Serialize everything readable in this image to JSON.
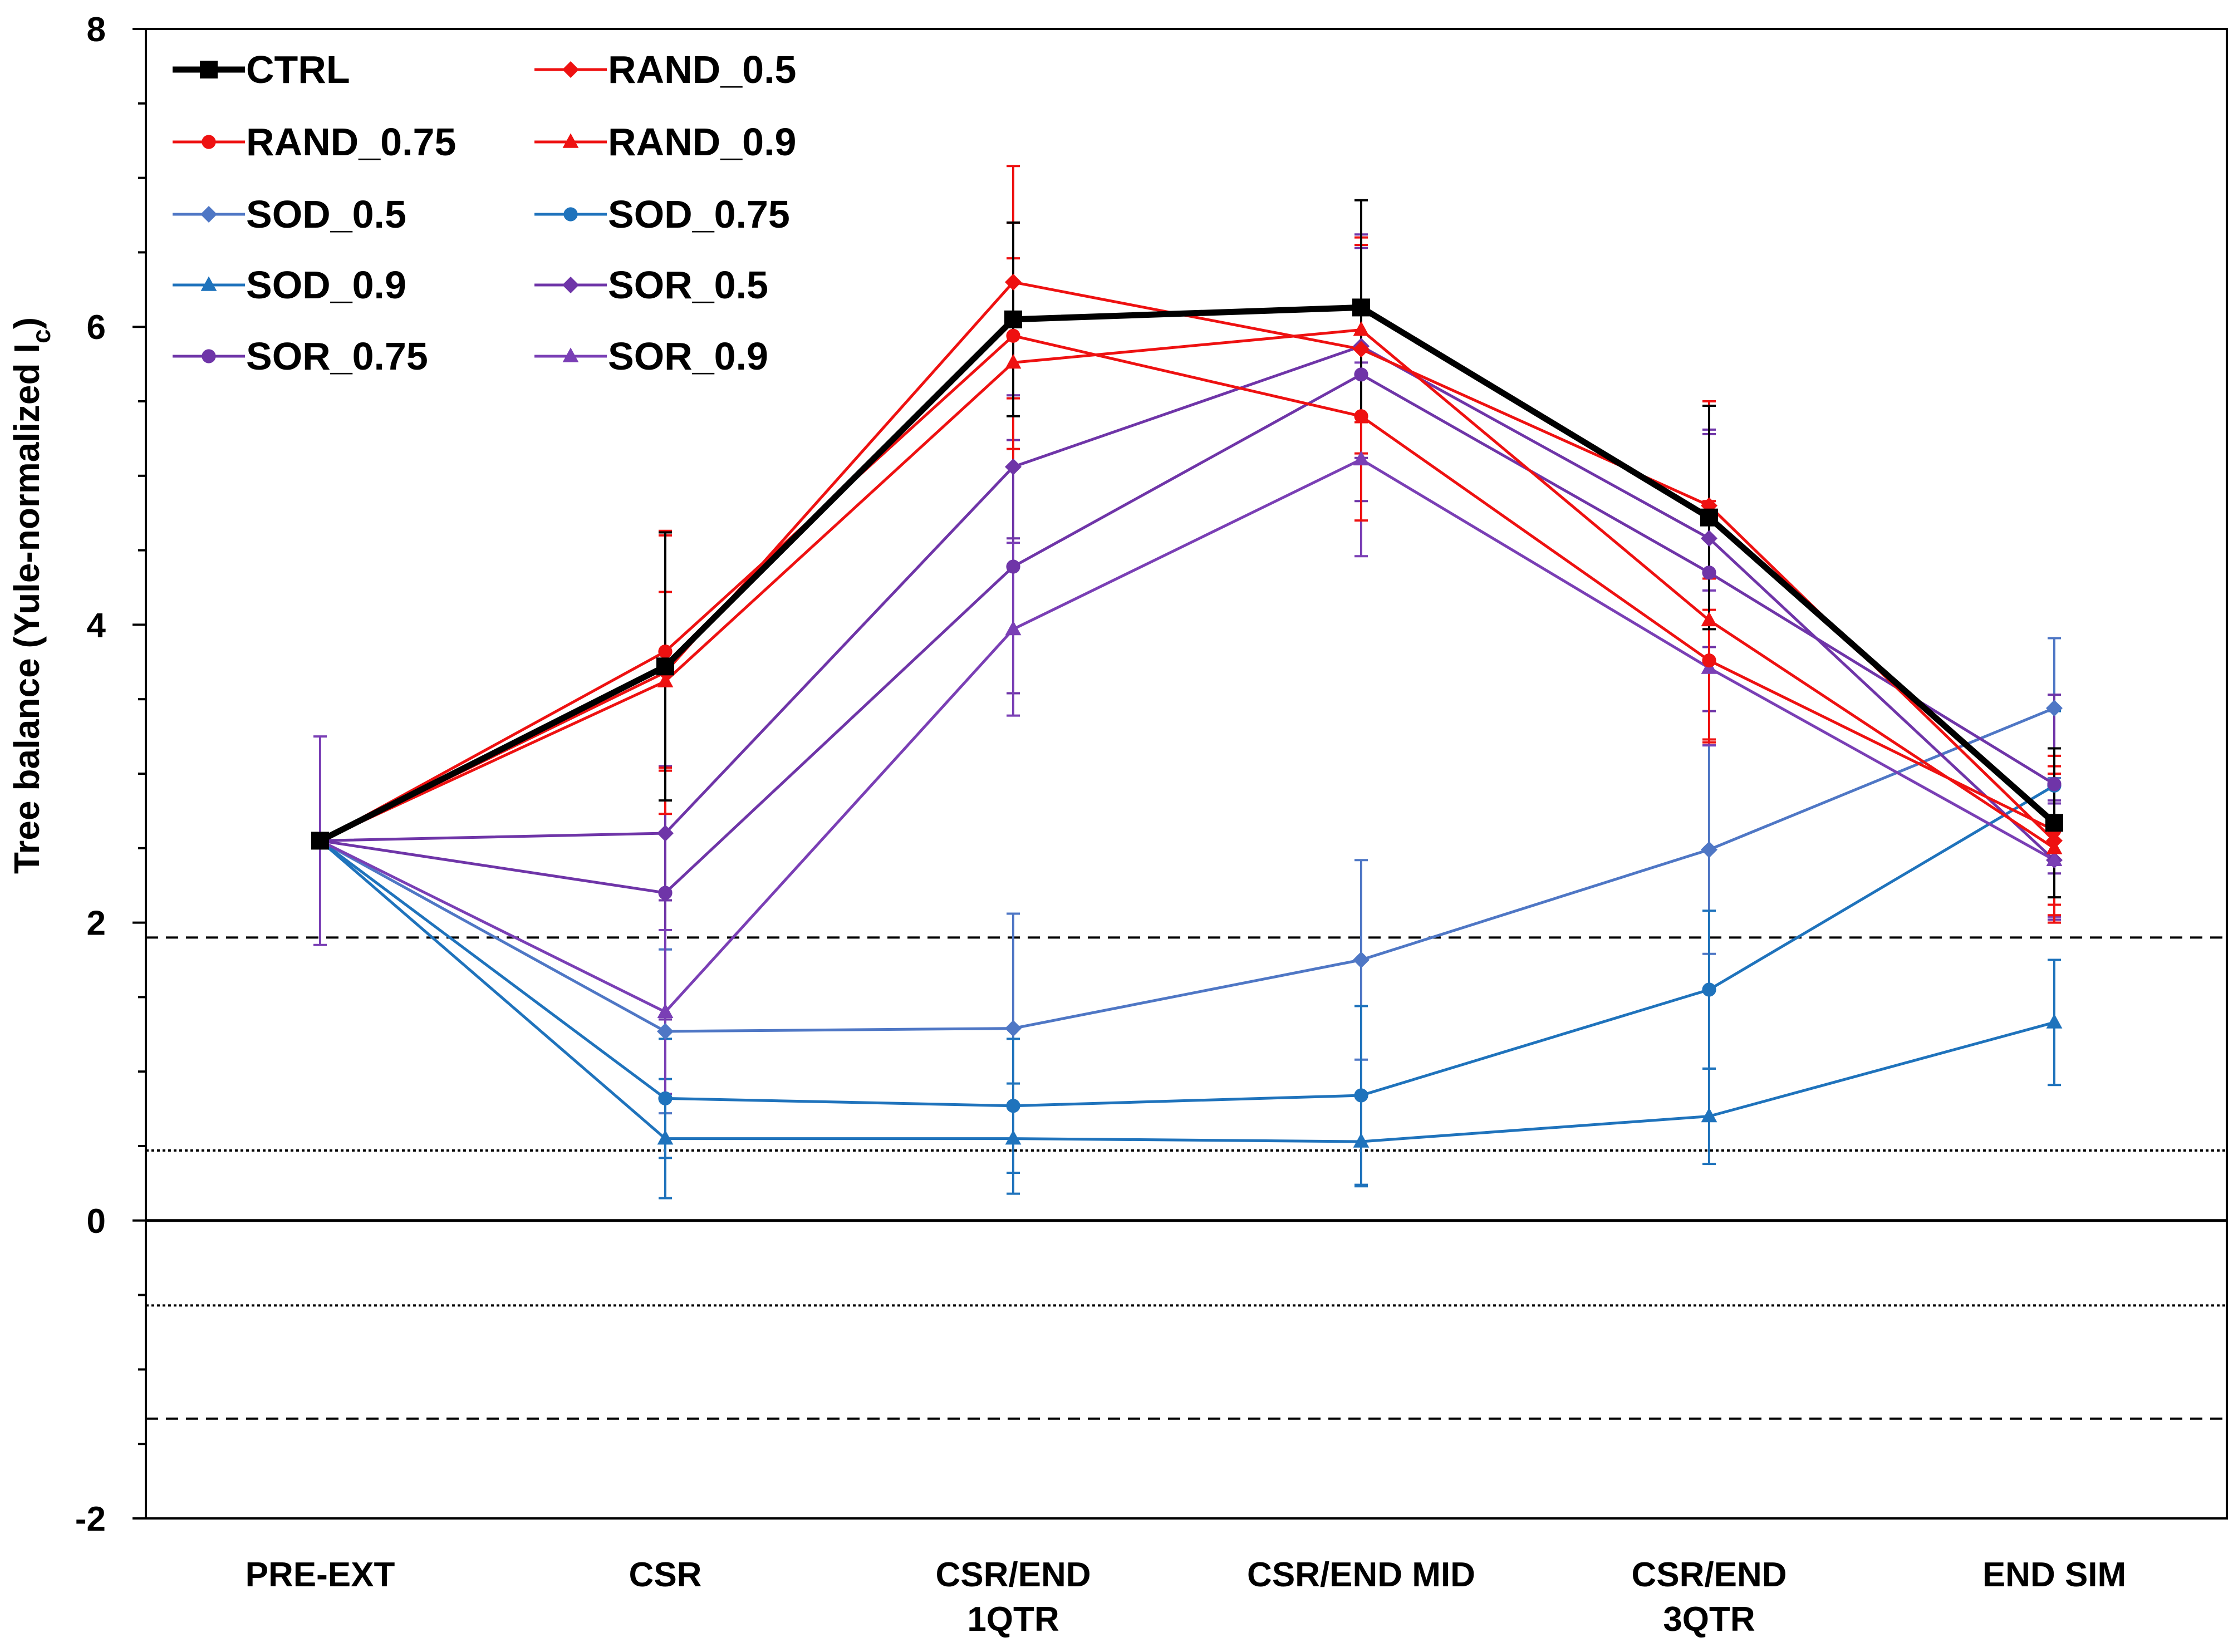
{
  "chart_data": {
    "type": "line",
    "categories": [
      [
        "PRE-EXT"
      ],
      [
        "CSR"
      ],
      [
        "CSR/END",
        "1QTR"
      ],
      [
        "CSR/END MID"
      ],
      [
        "CSR/END",
        "3QTR"
      ],
      [
        "END SIM"
      ]
    ],
    "ylabel": "Tree balance (Yule-normalized I",
    "ylabel_sub": "c",
    "ylabel_close": ")",
    "ylim": [
      -2,
      8
    ],
    "yticks": [
      -2,
      0,
      2,
      4,
      6,
      8
    ],
    "ytick_labels": [
      "-2",
      "0",
      "2",
      "4",
      "6",
      "8"
    ],
    "legend_position": "top-left",
    "reference_lines": [
      {
        "y": 1.9,
        "style": "dashed"
      },
      {
        "y": 0.47,
        "style": "dotted"
      },
      {
        "y": 0,
        "style": "solid"
      },
      {
        "y": -0.57,
        "style": "dotted"
      },
      {
        "y": -1.33,
        "style": "dashed"
      }
    ],
    "series": [
      {
        "name": "CTRL",
        "color": "#000000",
        "marker": "square",
        "width": 11,
        "values": [
          2.55,
          3.72,
          6.05,
          6.13,
          4.72,
          2.67
        ],
        "err": [
          0,
          0.9,
          0.65,
          0.72,
          0.75,
          0.5
        ]
      },
      {
        "name": "RAND_0.5",
        "color": "#ee1111",
        "marker": "diamond",
        "width": 5,
        "values": [
          2.55,
          3.68,
          6.3,
          5.85,
          4.8,
          2.55
        ],
        "err": [
          0,
          0.95,
          0.78,
          0.7,
          0.7,
          0.5
        ]
      },
      {
        "name": "RAND_0.75",
        "color": "#ee1111",
        "marker": "circle",
        "width": 5,
        "values": [
          2.55,
          3.82,
          5.94,
          5.4,
          3.76,
          2.62
        ],
        "err": [
          0,
          0.78,
          0.76,
          0.7,
          0.55,
          0.5
        ]
      },
      {
        "name": "RAND_0.9",
        "color": "#ee1111",
        "marker": "triangle",
        "width": 5,
        "values": [
          2.55,
          3.62,
          5.76,
          5.98,
          4.03,
          2.5
        ],
        "err": [
          0,
          0.6,
          0.7,
          0.62,
          0.8,
          0.5
        ]
      },
      {
        "name": "SOD_0.5",
        "color": "#4f77c5",
        "marker": "diamond",
        "width": 5,
        "values": [
          2.55,
          1.27,
          1.29,
          1.75,
          2.49,
          3.44
        ],
        "err": [
          0,
          0.55,
          0.77,
          0.67,
          0.7,
          0.47
        ]
      },
      {
        "name": "SOD_0.75",
        "color": "#1f73bc",
        "marker": "circle",
        "width": 5,
        "values": [
          2.55,
          0.82,
          0.77,
          0.84,
          1.55,
          2.92
        ],
        "err": [
          0,
          0.4,
          0.45,
          0.6,
          0.53,
          0.5
        ]
      },
      {
        "name": "SOD_0.9",
        "color": "#1f73bc",
        "marker": "triangle",
        "width": 5,
        "values": [
          2.55,
          0.55,
          0.55,
          0.53,
          0.7,
          1.33
        ],
        "err": [
          0,
          0.4,
          0.37,
          0.3,
          0.32,
          0.42
        ]
      },
      {
        "name": "SOR_0.5",
        "color": "#6f35a8",
        "marker": "diamond",
        "width": 5,
        "values": [
          2.55,
          2.6,
          5.06,
          5.87,
          4.58,
          2.42
        ],
        "err": [
          0,
          0.45,
          0.48,
          0.75,
          0.73,
          0.4
        ]
      },
      {
        "name": "SOR_0.75",
        "color": "#6f35a8",
        "marker": "circle",
        "width": 5,
        "values": [
          2.55,
          2.2,
          4.39,
          5.68,
          4.35,
          2.93
        ],
        "err": [
          0,
          0.85,
          0.85,
          0.85,
          0.93,
          0.6
        ]
      },
      {
        "name": "SOR_0.9",
        "color": "#7a3fb5",
        "marker": "triangle",
        "width": 5,
        "values": [
          2.55,
          1.4,
          3.97,
          5.11,
          3.71,
          2.42
        ],
        "err": [
          0.7,
          0.55,
          0.58,
          0.65,
          0.52,
          0.38
        ]
      }
    ]
  }
}
